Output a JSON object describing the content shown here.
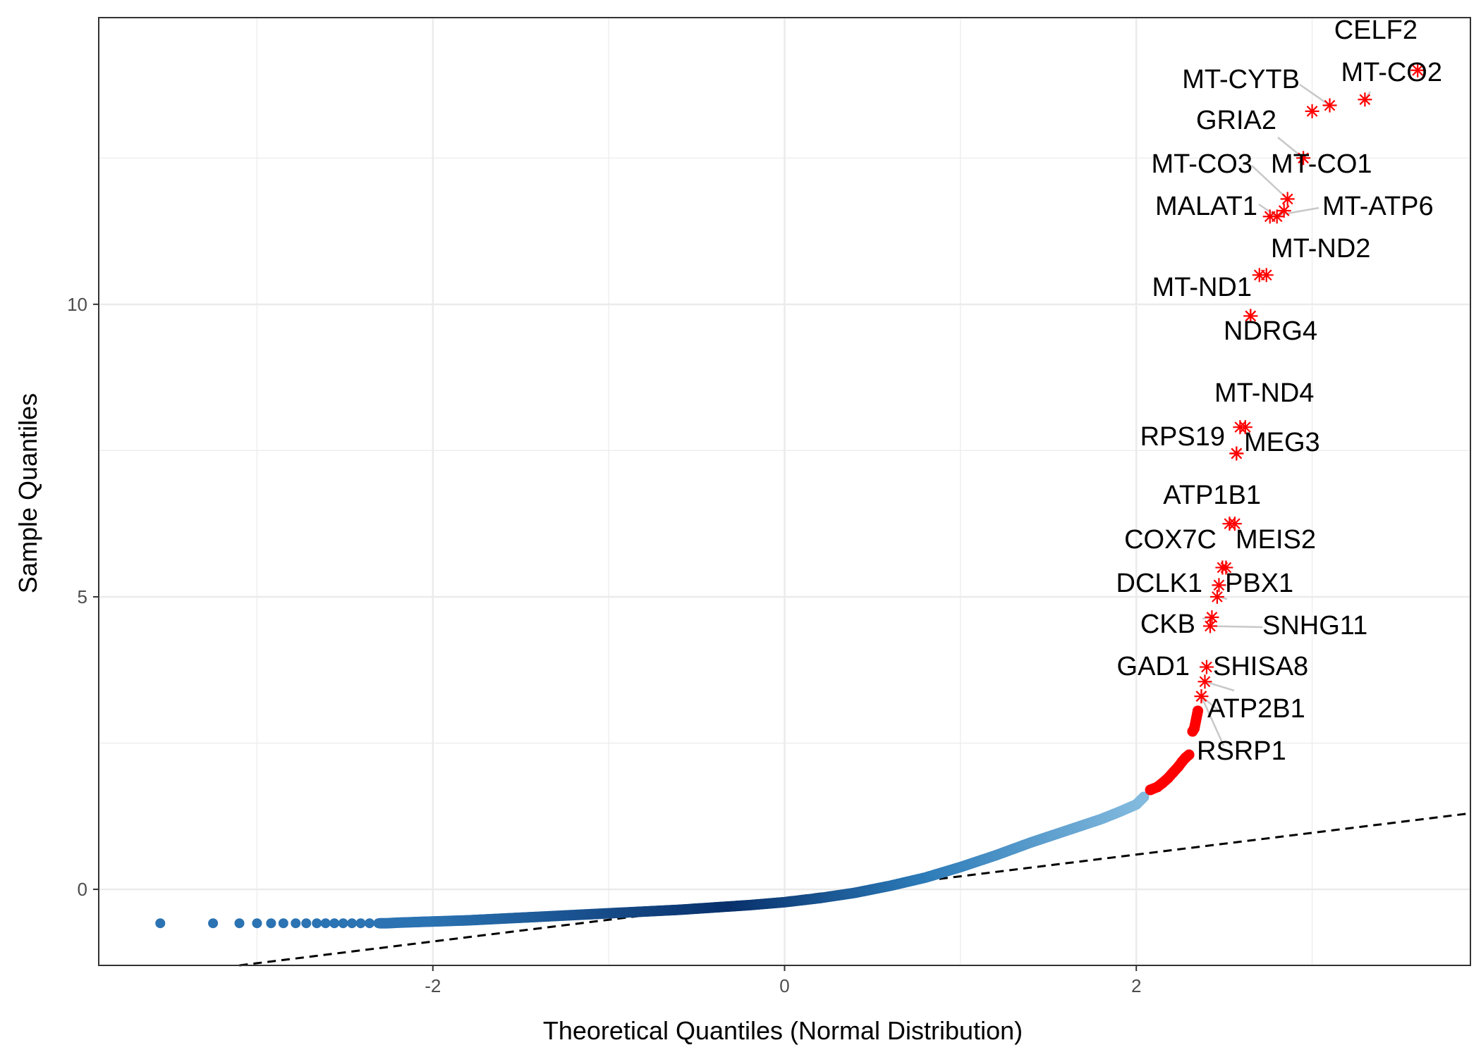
{
  "chart_data": {
    "type": "scatter",
    "title": "",
    "xlabel": "Theoretical Quantiles (Normal Distribution)",
    "ylabel": "Sample Quantiles",
    "xlim": [
      -3.9,
      3.9
    ],
    "ylim": [
      -1.3,
      14.9
    ],
    "x_ticks": [
      -2,
      0,
      2
    ],
    "y_ticks": [
      0,
      5,
      10
    ],
    "grid": true,
    "legend": "none",
    "reference_line": {
      "style": "dashed",
      "color": "#000000",
      "from": [
        -3.1,
        -1.3
      ],
      "to": [
        3.9,
        1.3
      ]
    },
    "colors": {
      "point_gradient": [
        "#2b73b2",
        "#08306b",
        "#2c7bb8",
        "#87bde0"
      ],
      "outlier": "#ff0000",
      "grid": "#ebebeb",
      "panel_border": "#333333"
    },
    "qq_points": {
      "x": [
        -3.55,
        -3.25,
        -3.1,
        -3.0,
        -2.92,
        -2.85,
        -2.78,
        -2.72,
        -2.66,
        -2.61,
        -2.56,
        -2.51,
        -2.46,
        -2.41,
        -2.36,
        -2.31,
        -2.26,
        -2.2,
        -2.1,
        -2.0,
        -1.8,
        -1.6,
        -1.4,
        -1.2,
        -1.0,
        -0.8,
        -0.6,
        -0.4,
        -0.2,
        0.0,
        0.2,
        0.4,
        0.6,
        0.8,
        1.0,
        1.2,
        1.4,
        1.6,
        1.8,
        1.9,
        2.0,
        2.05
      ],
      "y": [
        -0.58,
        -0.58,
        -0.58,
        -0.58,
        -0.58,
        -0.58,
        -0.58,
        -0.58,
        -0.58,
        -0.58,
        -0.58,
        -0.58,
        -0.58,
        -0.58,
        -0.58,
        -0.58,
        -0.58,
        -0.57,
        -0.56,
        -0.55,
        -0.53,
        -0.5,
        -0.47,
        -0.44,
        -0.41,
        -0.38,
        -0.35,
        -0.31,
        -0.27,
        -0.22,
        -0.15,
        -0.06,
        0.06,
        0.2,
        0.38,
        0.58,
        0.8,
        1.0,
        1.2,
        1.32,
        1.45,
        1.6
      ]
    },
    "red_points": {
      "x": [
        2.08,
        2.12,
        2.15,
        2.18,
        2.21,
        2.24,
        2.26,
        2.28,
        2.3,
        2.32,
        2.33,
        2.35
      ],
      "y": [
        1.7,
        1.75,
        1.82,
        1.9,
        2.0,
        2.1,
        2.18,
        2.25,
        2.3,
        2.7,
        2.75,
        3.05
      ]
    },
    "labeled_points": [
      {
        "gene": "CELF2",
        "x": 3.6,
        "y": 14.0
      },
      {
        "gene": "MT-CO2",
        "x": 3.3,
        "y": 13.5
      },
      {
        "gene": "MT-CYTB",
        "x": 3.1,
        "y": 13.4
      },
      {
        "gene": "",
        "x": 3.0,
        "y": 13.3
      },
      {
        "gene": "GRIA2",
        "x": 2.95,
        "y": 12.5
      },
      {
        "gene": "MT-CO3",
        "x": 2.86,
        "y": 11.8
      },
      {
        "gene": "MT-CO1",
        "x": 2.84,
        "y": 11.6
      },
      {
        "gene": "MALAT1",
        "x": 2.8,
        "y": 11.5
      },
      {
        "gene": "MT-ATP6",
        "x": 2.76,
        "y": 11.5
      },
      {
        "gene": "MT-ND2",
        "x": 2.74,
        "y": 10.5
      },
      {
        "gene": "",
        "x": 2.7,
        "y": 10.5
      },
      {
        "gene": "MT-ND1",
        "x": 2.65,
        "y": 9.8
      },
      {
        "gene": "NDRG4",
        "x": 2.65,
        "y": 9.8
      },
      {
        "gene": "MT-ND4",
        "x": 2.62,
        "y": 7.9
      },
      {
        "gene": "",
        "x": 2.59,
        "y": 7.9
      },
      {
        "gene": "RPS19",
        "x": 2.57,
        "y": 7.45
      },
      {
        "gene": "MEG3",
        "x": 2.57,
        "y": 7.45
      },
      {
        "gene": "ATP1B1",
        "x": 2.56,
        "y": 6.25
      },
      {
        "gene": "",
        "x": 2.53,
        "y": 6.25
      },
      {
        "gene": "COX7C",
        "x": 2.51,
        "y": 5.5
      },
      {
        "gene": "MEIS2",
        "x": 2.49,
        "y": 5.5
      },
      {
        "gene": "DCLK1",
        "x": 2.47,
        "y": 5.2
      },
      {
        "gene": "PBX1",
        "x": 2.46,
        "y": 5.0
      },
      {
        "gene": "CKB",
        "x": 2.43,
        "y": 4.65
      },
      {
        "gene": "SNHG11",
        "x": 2.42,
        "y": 4.5
      },
      {
        "gene": "GAD1",
        "x": 2.4,
        "y": 3.8
      },
      {
        "gene": "SHISA8",
        "x": 2.39,
        "y": 3.55
      },
      {
        "gene": "ATP2B1",
        "x": 2.37,
        "y": 3.3
      },
      {
        "gene": "RSRP1",
        "x": 2.37,
        "y": 3.3
      }
    ]
  }
}
